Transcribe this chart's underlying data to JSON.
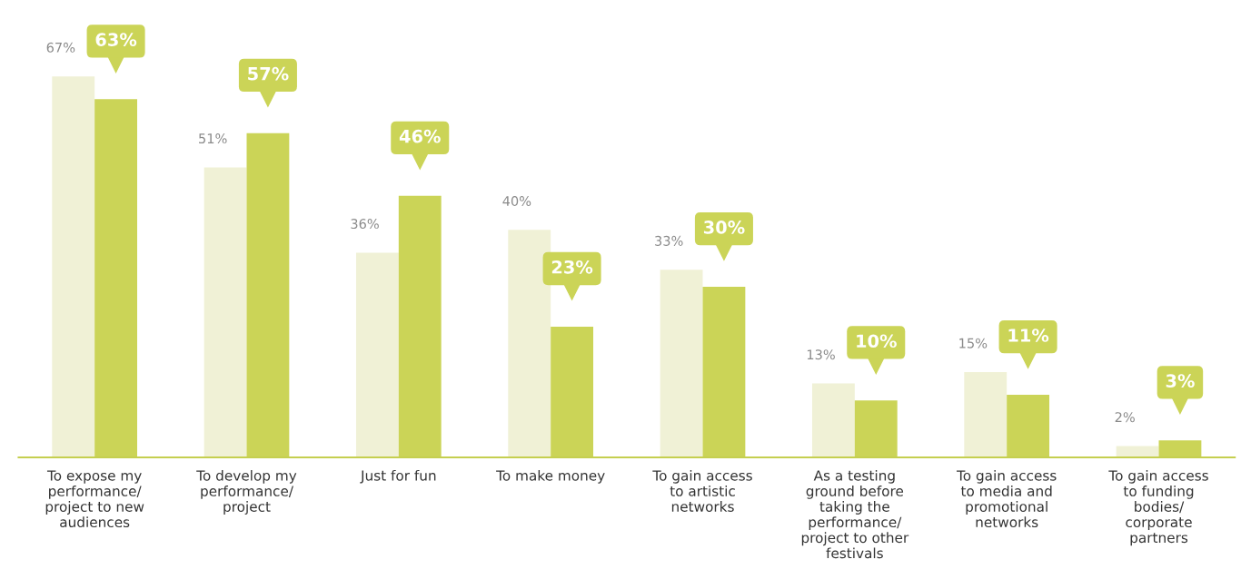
{
  "chart_data": {
    "type": "bar",
    "categories": [
      "To expose my performance/ project to new audiences",
      "To develop my performance/ project",
      "Just for fun",
      "To make money",
      "To gain access to artistic networks",
      "As a testing ground before taking the performance/ project to other festivals",
      "To gain access to media and promotional networks",
      "To gain access to funding bodies/ corporate partners"
    ],
    "series": [
      {
        "color": "#f0f1d6",
        "values": [
          67,
          51,
          36,
          40,
          33,
          13,
          15,
          2
        ],
        "value_labels": [
          "67%",
          "51%",
          "36%",
          "40%",
          "33%",
          "13%",
          "15%",
          "2%"
        ]
      },
      {
        "color": "#cbd457",
        "values": [
          63,
          57,
          46,
          23,
          30,
          10,
          11,
          3
        ],
        "value_labels": [
          "63%",
          "57%",
          "46%",
          "23%",
          "30%",
          "10%",
          "11%",
          "3%"
        ]
      }
    ],
    "tick_labels": "x"
  }
}
